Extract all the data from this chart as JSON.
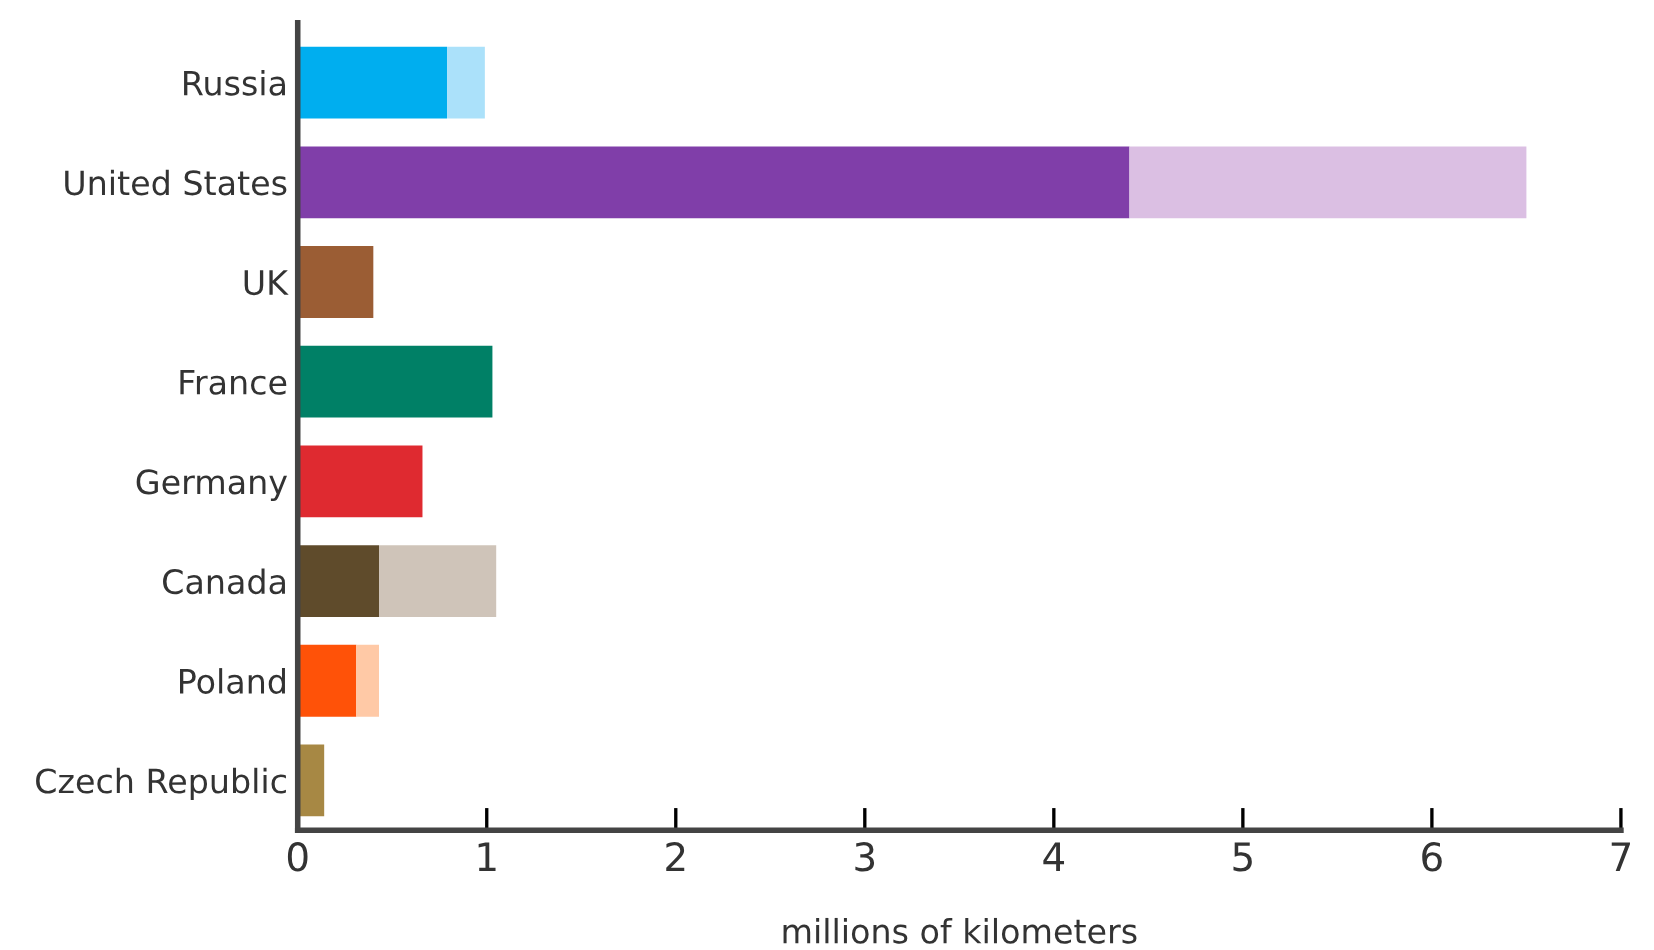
{
  "chart_data": {
    "type": "bar",
    "orientation": "horizontal",
    "stacked": true,
    "categories": [
      "Russia",
      "United States",
      "UK",
      "France",
      "Germany",
      "Canada",
      "Poland",
      "Czech Republic"
    ],
    "series": [
      {
        "colors": [
          "#00aeef",
          "#803ea9",
          "#9b5d34",
          "#008066",
          "#df2a30",
          "#5f4b2b",
          "#ff5208",
          "#a78844"
        ],
        "values": [
          0.79,
          4.4,
          0.4,
          1.03,
          0.66,
          0.43,
          0.31,
          0.14
        ]
      },
      {
        "colors": [
          "#abe1fa",
          "#dbbfe3",
          null,
          null,
          null,
          "#cfc4b9",
          "#ffc9a6",
          null
        ],
        "values": [
          0.2,
          2.1,
          null,
          null,
          null,
          0.62,
          0.12,
          null
        ]
      }
    ],
    "xlim": [
      0,
      7
    ],
    "xticks": [
      0,
      1,
      2,
      3,
      4,
      5,
      6,
      7
    ],
    "xlabel": "millions of kilometers",
    "grid": false,
    "legend": false
  }
}
